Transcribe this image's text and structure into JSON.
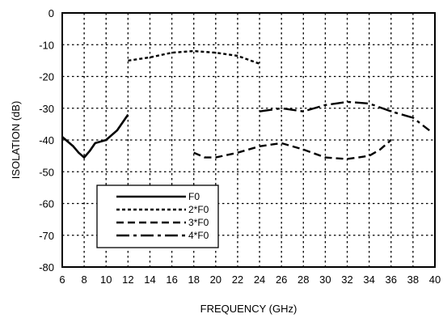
{
  "chart_data": {
    "type": "line",
    "xlabel": "FREQUENCY (GHz)",
    "ylabel": "ISOLATION (dB)",
    "xlim": [
      6,
      40
    ],
    "ylim": [
      -80,
      0
    ],
    "x_ticks": [
      6,
      8,
      10,
      12,
      14,
      16,
      18,
      20,
      22,
      24,
      26,
      28,
      30,
      32,
      34,
      36,
      38,
      40
    ],
    "y_ticks": [
      0,
      -10,
      -20,
      -30,
      -40,
      -50,
      -60,
      -70,
      -80
    ],
    "grid": true,
    "legend_position": "bottom-left",
    "series": [
      {
        "name": "F0",
        "style": "solid",
        "x": [
          6,
          6.5,
          7,
          7.5,
          8,
          8.5,
          9,
          10,
          11,
          12
        ],
        "y": [
          -39,
          -40.5,
          -42,
          -44,
          -45.5,
          -43.5,
          -41,
          -40,
          -37,
          -32
        ]
      },
      {
        "name": "2*F0",
        "style": "short-dash",
        "x": [
          12,
          14,
          16,
          18,
          20,
          22,
          24
        ],
        "y": [
          -15,
          -14,
          -12.5,
          -12,
          -12.5,
          -13.5,
          -16
        ]
      },
      {
        "name": "3*F0",
        "style": "medium-dash",
        "x": [
          18,
          19,
          20,
          22,
          24,
          26,
          28,
          30,
          32,
          34,
          35,
          36
        ],
        "y": [
          -44,
          -45.5,
          -45.5,
          -44,
          -42,
          -41,
          -43,
          -45.5,
          -46,
          -45,
          -43,
          -40
        ]
      },
      {
        "name": "4*F0",
        "style": "long-dash",
        "x": [
          24,
          26,
          28,
          30,
          32,
          34,
          36,
          38,
          39.5
        ],
        "y": [
          -31,
          -30,
          -31,
          -29,
          -28,
          -28.5,
          -31,
          -33,
          -37
        ]
      }
    ]
  }
}
